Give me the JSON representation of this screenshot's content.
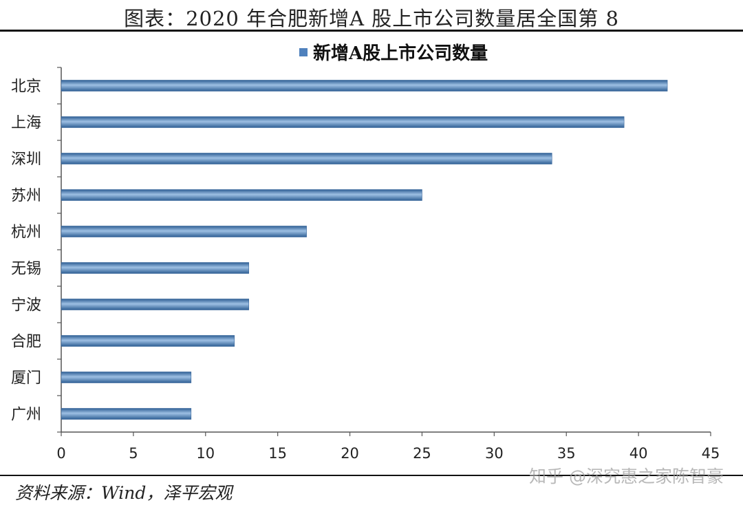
{
  "title": "图表：2020 年合肥新增A 股上市公司数量居全国第 8",
  "source": "资料来源：Wind，泽平宏观",
  "watermark": "知乎 @深究惠之家陈智豪",
  "chart_data": {
    "type": "bar",
    "orientation": "horizontal",
    "categories": [
      "北京",
      "上海",
      "深圳",
      "苏州",
      "杭州",
      "无锡",
      "宁波",
      "合肥",
      "厦门",
      "广州"
    ],
    "series": [
      {
        "name": "新增A股上市公司数量",
        "values": [
          42,
          39,
          34,
          25,
          17,
          13,
          13,
          12,
          9,
          9
        ],
        "color": "#4f81bd"
      }
    ],
    "xlim": [
      0,
      45
    ],
    "xticks": [
      "0",
      "5",
      "10",
      "15",
      "20",
      "25",
      "30",
      "35",
      "40",
      "45"
    ],
    "legend_position": "top-center",
    "grid": false
  }
}
